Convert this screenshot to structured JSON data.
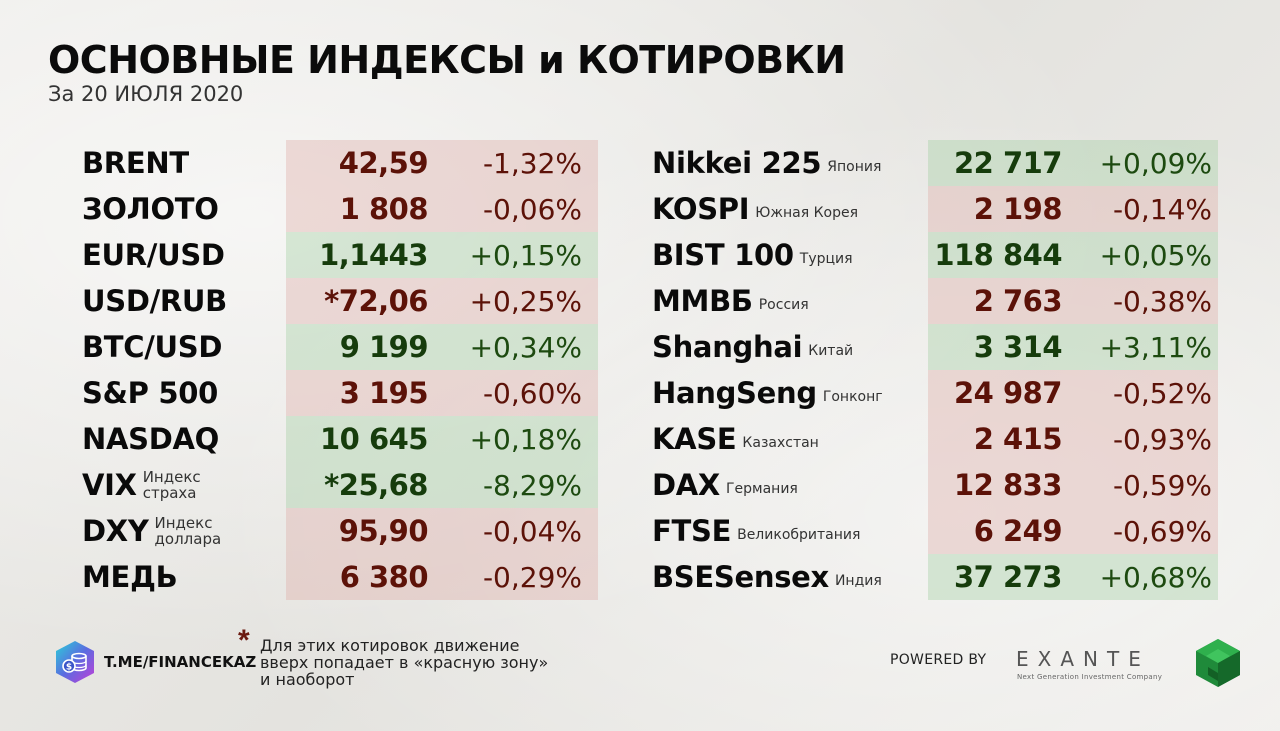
{
  "header": {
    "title": "ОСНОВНЫЕ ИНДЕКСЫ и КОТИРОВКИ",
    "subtitle": "За 20 ИЮЛЯ 2020"
  },
  "colors": {
    "red_zone": "#5c1208",
    "green_zone": "#1d4a10",
    "asterisk": "#6b1a10"
  },
  "left_table": [
    {
      "name": "BRENT",
      "note": "",
      "value": "42,59",
      "change": "-1,32%",
      "zone": "red"
    },
    {
      "name": "ЗОЛОТО",
      "note": "",
      "value": "1 808",
      "change": "-0,06%",
      "zone": "red"
    },
    {
      "name": "EUR/USD",
      "note": "",
      "value": "1,1443",
      "change": "+0,15%",
      "zone": "green"
    },
    {
      "name": "USD/RUB",
      "note": "",
      "value": "*72,06",
      "change": "+0,25%",
      "zone": "red"
    },
    {
      "name": "BTC/USD",
      "note": "",
      "value": "9 199",
      "change": "+0,34%",
      "zone": "green"
    },
    {
      "name": "S&P 500",
      "note": "",
      "value": "3 195",
      "change": "-0,60%",
      "zone": "red"
    },
    {
      "name": "NASDAQ",
      "note": "",
      "value": "10 645",
      "change": "+0,18%",
      "zone": "green"
    },
    {
      "name": "VIX",
      "note": "Индекс\nстраха",
      "value": "*25,68",
      "change": "-8,29%",
      "zone": "green"
    },
    {
      "name": "DXY",
      "note": "Индекс\nдоллара",
      "value": "95,90",
      "change": "-0,04%",
      "zone": "red"
    },
    {
      "name": "МЕДЬ",
      "note": "",
      "value": "6 380",
      "change": "-0,29%",
      "zone": "red"
    }
  ],
  "right_table": [
    {
      "name": "Nikkei 225",
      "note": "Япония",
      "value": "22 717",
      "change": "+0,09%",
      "zone": "green"
    },
    {
      "name": "KOSPI",
      "note": "Южная Корея",
      "value": "2 198",
      "change": "-0,14%",
      "zone": "red"
    },
    {
      "name": "BIST 100",
      "note": "Турция",
      "value": "118 844",
      "change": "+0,05%",
      "zone": "green"
    },
    {
      "name": "ММВБ",
      "note": "Россия",
      "value": "2 763",
      "change": "-0,38%",
      "zone": "red"
    },
    {
      "name": "Shanghai",
      "note": "Китай",
      "value": "3 314",
      "change": "+3,11%",
      "zone": "green"
    },
    {
      "name": "HangSeng",
      "note": "Гонконг",
      "value": "24 987",
      "change": "-0,52%",
      "zone": "red"
    },
    {
      "name": "KASE",
      "note": "Казахстан",
      "value": "2 415",
      "change": "-0,93%",
      "zone": "red"
    },
    {
      "name": "DAX",
      "note": "Германия",
      "value": "12 833",
      "change": "-0,59%",
      "zone": "red"
    },
    {
      "name": "FTSE",
      "note": "Великобритания",
      "value": "6 249",
      "change": "-0,69%",
      "zone": "red"
    },
    {
      "name": "BSESensex",
      "note": "Индия",
      "value": "37 273",
      "change": "+0,68%",
      "zone": "green"
    }
  ],
  "footer": {
    "channel": "T.ME/FINANCEKAZ",
    "channel_icon": "coin-stack-icon",
    "asterisk": "*",
    "footnote": "Для этих котировок движение\nвверх попадает в «красную зону»\nи наоборот",
    "powered_by": "POWERED BY",
    "brand": "EXANTE",
    "brand_tagline": "Next Generation Investment Company",
    "brand_icon": "cube-icon"
  }
}
